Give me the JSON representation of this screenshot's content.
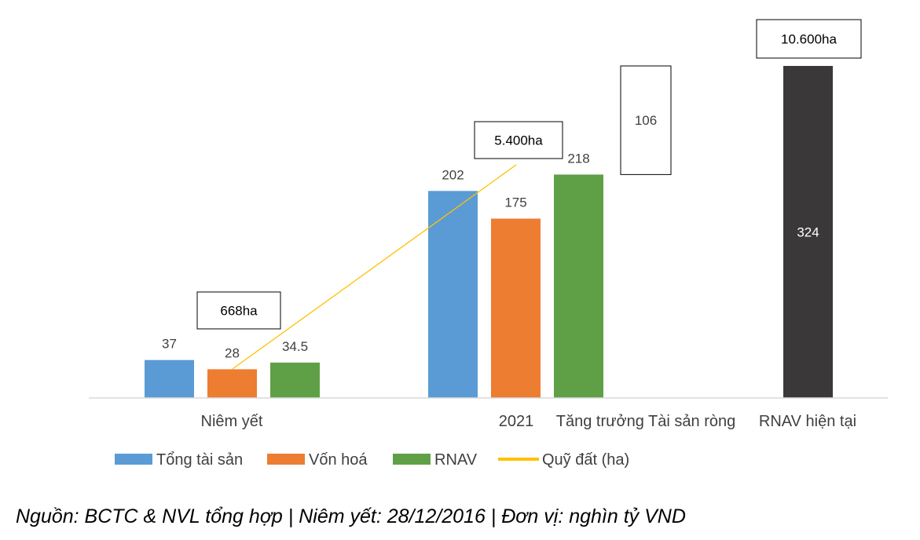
{
  "chart_data": {
    "type": "bar",
    "categories": [
      "Niêm yết",
      "2021",
      "Tăng trưởng Tài sản ròng",
      "RNAV hiện tại"
    ],
    "series": [
      {
        "name": "Tổng tài sản",
        "color": "#5B9BD5",
        "values": [
          37,
          202,
          null,
          null
        ],
        "labels": [
          "37",
          "202",
          "",
          ""
        ]
      },
      {
        "name": "Vốn hoá",
        "color": "#ED7D31",
        "values": [
          28,
          175,
          null,
          null
        ],
        "labels": [
          "28",
          "175",
          "",
          ""
        ]
      },
      {
        "name": "RNAV",
        "color": "#5FA046",
        "values": [
          34.5,
          218,
          null,
          null
        ],
        "labels": [
          "34.5",
          "218",
          "",
          ""
        ]
      }
    ],
    "waterfall": {
      "growth": {
        "value": 106,
        "label": "106",
        "base": 218
      },
      "current": {
        "value": 324,
        "label": "324",
        "color": "#3B3839"
      }
    },
    "line": {
      "name": "Quỹ đất (ha)",
      "color": "#FFC000",
      "points": [
        {
          "category": "Niêm yết",
          "value": 668,
          "label": "668ha"
        },
        {
          "category": "2021",
          "value": 5400,
          "label": "5.400ha"
        },
        {
          "category": "RNAV hiện tại",
          "value": 10600,
          "label": "10.600ha"
        }
      ]
    },
    "ylim": [
      0,
      340
    ],
    "grid": false,
    "legend_position": "bottom-left"
  },
  "footer": "Nguồn: BCTC & NVL tổng hợp | Niêm yết: 28/12/2016 | Đơn vị: nghìn tỷ VND"
}
